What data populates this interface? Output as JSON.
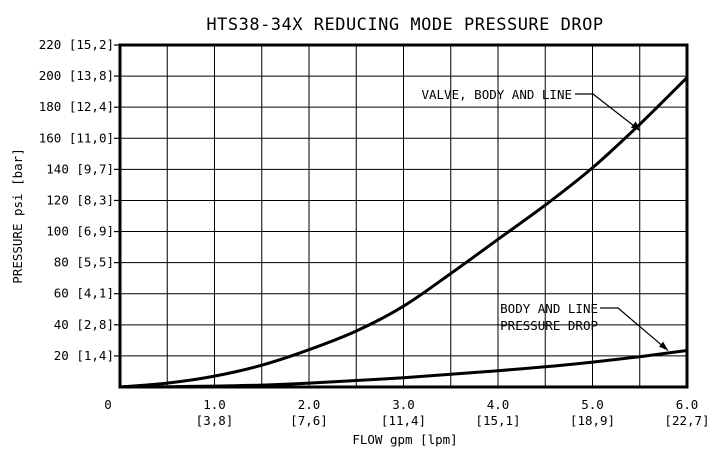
{
  "chart_data": {
    "type": "line",
    "title": "HTS38-34X REDUCING MODE PRESSURE DROP",
    "xlabel": "FLOW gpm [lpm]",
    "ylabel": "PRESSURE psi [bar]",
    "xlim": [
      0,
      6.0
    ],
    "ylim": [
      0,
      220
    ],
    "grid": true,
    "origin_label": "0",
    "x_ticks": [
      {
        "value": 1.0,
        "label": "1.0",
        "sub": "[3,8]"
      },
      {
        "value": 2.0,
        "label": "2.0",
        "sub": "[7,6]"
      },
      {
        "value": 3.0,
        "label": "3.0",
        "sub": "[11,4]"
      },
      {
        "value": 4.0,
        "label": "4.0",
        "sub": "[15,1]"
      },
      {
        "value": 5.0,
        "label": "5.0",
        "sub": "[18,9]"
      },
      {
        "value": 6.0,
        "label": "6.0",
        "sub": "[22,7]"
      }
    ],
    "y_ticks": [
      {
        "value": 20,
        "label": "20 [1,4]"
      },
      {
        "value": 40,
        "label": "40 [2,8]"
      },
      {
        "value": 60,
        "label": "60 [4,1]"
      },
      {
        "value": 80,
        "label": "80 [5,5]"
      },
      {
        "value": 100,
        "label": "100 [6,9]"
      },
      {
        "value": 120,
        "label": "120 [8,3]"
      },
      {
        "value": 140,
        "label": "140 [9,7]"
      },
      {
        "value": 160,
        "label": "160 [11,0]"
      },
      {
        "value": 180,
        "label": "180 [12,4]"
      },
      {
        "value": 200,
        "label": "200 [13,8]"
      },
      {
        "value": 220,
        "label": "220 [15,2]"
      }
    ],
    "series": [
      {
        "name": "VALVE, BODY AND LINE",
        "x": [
          0,
          0.5,
          1.0,
          1.5,
          2.0,
          2.5,
          3.0,
          3.5,
          4.0,
          4.5,
          5.0,
          5.5,
          6.0
        ],
        "y": [
          0,
          2.5,
          7,
          14,
          24,
          36,
          52,
          73,
          95,
          117,
          141,
          169,
          199
        ]
      },
      {
        "name": "BODY AND LINE PRESSURE DROP",
        "x": [
          0,
          0.5,
          1.0,
          1.5,
          2.0,
          2.5,
          3.0,
          3.5,
          4.0,
          4.5,
          5.0,
          5.5,
          6.0
        ],
        "y": [
          0,
          0.2,
          0.6,
          1.2,
          2.5,
          4.2,
          6.0,
          8.2,
          10.5,
          13,
          16,
          19.5,
          23.5
        ]
      }
    ],
    "annotations": [
      {
        "text": "VALVE, BODY AND LINE",
        "target_series": 0
      },
      {
        "text": "BODY AND LINE",
        "text2": "PRESSURE DROP",
        "target_series": 1
      }
    ]
  }
}
